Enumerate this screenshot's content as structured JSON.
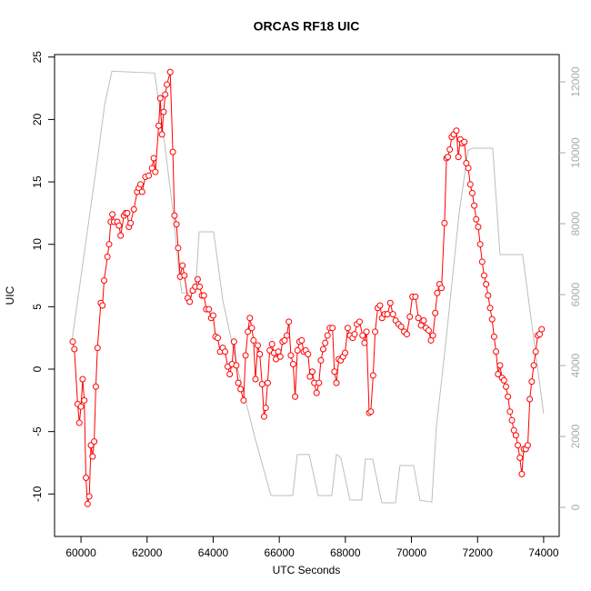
{
  "chart_data": {
    "type": "line",
    "title": "ORCAS RF18 UIC",
    "x_label": "UTC Seconds",
    "y_label": "UIC",
    "xlim": [
      59200,
      74470
    ],
    "xticks": [
      60000,
      62000,
      64000,
      66000,
      68000,
      70000,
      72000,
      74000
    ],
    "ylim": [
      -13.4,
      25.2
    ],
    "yticks": [
      -10,
      -5,
      0,
      5,
      10,
      15,
      20,
      25
    ],
    "y2lim": [
      -820,
      12770
    ],
    "y2ticks": [
      0,
      2000,
      4000,
      6000,
      8000,
      10000,
      12000
    ],
    "series": [
      {
        "color": "#bebebe",
        "axis": "y2",
        "marker": "none",
        "x": [
          59725,
          60495,
          60715,
          60935,
          62228,
          62503,
          62778,
          62970,
          63053,
          63465,
          63575,
          64015,
          64290,
          64703,
          65253,
          65748,
          66408,
          66545,
          66903,
          67178,
          67590,
          67728,
          67865,
          68140,
          68498,
          68608,
          68828,
          69103,
          69515,
          69653,
          70065,
          70258,
          70615,
          70753,
          71028,
          71440,
          71715,
          71853,
          72458,
          72678,
          73365,
          74000
        ],
        "values": [
          4690,
          9800,
          11360,
          12300,
          12250,
          10460,
          8400,
          6600,
          6050,
          6050,
          7770,
          7770,
          5850,
          4050,
          2000,
          333,
          333,
          1490,
          1490,
          333,
          333,
          1490,
          1400,
          205,
          205,
          1360,
          1360,
          128,
          128,
          1180,
          1180,
          200,
          150,
          2256,
          4560,
          8280,
          10080,
          10130,
          10130,
          7130,
          7130,
          2640
        ]
      },
      {
        "color": "#ff0000",
        "marker": "circle",
        "x": [
          59750,
          59800,
          59900,
          59950,
          60000,
          60050,
          60100,
          60150,
          60200,
          60250,
          60300,
          60350,
          60400,
          60450,
          60500,
          60600,
          60650,
          60700,
          60800,
          60850,
          60900,
          60950,
          61000,
          61100,
          61150,
          61200,
          61300,
          61350,
          61400,
          61450,
          61500,
          61600,
          61700,
          61750,
          61800,
          61850,
          61950,
          62050,
          62150,
          62200,
          62250,
          62350,
          62400,
          62450,
          62500,
          62550,
          62600,
          62700,
          62780,
          62830,
          62890,
          62940,
          63000,
          63070,
          63130,
          63230,
          63290,
          63380,
          63460,
          63530,
          63590,
          63660,
          63720,
          63790,
          63870,
          63940,
          64000,
          64070,
          64140,
          64210,
          64290,
          64360,
          64440,
          64500,
          64570,
          64630,
          64700,
          64760,
          64830,
          64920,
          64980,
          65050,
          65110,
          65170,
          65220,
          65280,
          65350,
          65410,
          65480,
          65540,
          65590,
          65650,
          65710,
          65780,
          65840,
          65900,
          65970,
          66030,
          66100,
          66160,
          66230,
          66290,
          66350,
          66420,
          66480,
          66550,
          66610,
          66680,
          66740,
          66800,
          66870,
          66930,
          67000,
          67060,
          67130,
          67200,
          67260,
          67330,
          67390,
          67460,
          67530,
          67610,
          67670,
          67730,
          67800,
          67860,
          67930,
          67990,
          68070,
          68140,
          68220,
          68280,
          68350,
          68430,
          68520,
          68580,
          68640,
          68720,
          68770,
          68840,
          68900,
          68980,
          69050,
          69110,
          69190,
          69270,
          69360,
          69440,
          69520,
          69610,
          69690,
          69780,
          69860,
          69950,
          70030,
          70120,
          70210,
          70290,
          70370,
          70440,
          70520,
          70590,
          70650,
          70720,
          70780,
          70850,
          70910,
          71000,
          71060,
          71100,
          71160,
          71220,
          71280,
          71360,
          71420,
          71480,
          71540,
          71600,
          71660,
          71720,
          71780,
          71840,
          71900,
          71960,
          72020,
          72080,
          72140,
          72200,
          72260,
          72320,
          72380,
          72440,
          72500,
          72560,
          72620,
          72680,
          72740,
          72800,
          72860,
          72920,
          72980,
          73040,
          73100,
          73160,
          73220,
          73280,
          73340,
          73400,
          73460,
          73520,
          73580,
          73640,
          73700,
          73760,
          73820,
          73880,
          73940
        ],
        "values": [
          2.2,
          1.6,
          -2.8,
          -4.3,
          -3.0,
          -0.8,
          -2.5,
          -8.7,
          -10.8,
          -10.2,
          -6.1,
          -7.0,
          -5.8,
          -1.4,
          1.7,
          5.3,
          5.1,
          7.1,
          9.0,
          10.0,
          11.8,
          12.4,
          11.8,
          11.8,
          11.5,
          10.7,
          12.3,
          12.5,
          12.5,
          11.4,
          11.7,
          12.8,
          14.2,
          14.5,
          14.8,
          14.2,
          15.4,
          15.5,
          16.1,
          16.9,
          15.8,
          19.5,
          21.7,
          18.8,
          20.6,
          22.0,
          22.8,
          23.8,
          17.4,
          12.3,
          11.6,
          9.7,
          7.4,
          8.3,
          7.5,
          5.7,
          5.4,
          6.3,
          6.6,
          7.2,
          6.6,
          5.9,
          5.9,
          4.8,
          4.8,
          4.1,
          4.3,
          2.6,
          2.5,
          1.4,
          1.7,
          1.4,
          0.2,
          -0.4,
          0.4,
          2.2,
          0.3,
          -1.1,
          -1.6,
          -2.5,
          1.1,
          3.0,
          4.1,
          3.3,
          2.3,
          -0.8,
          1.9,
          1.2,
          -1.2,
          -3.8,
          -3.1,
          -1.1,
          1.5,
          2.0,
          1.3,
          0.8,
          1.4,
          1.0,
          2.2,
          2.3,
          2.7,
          3.8,
          1.1,
          0.4,
          -2.2,
          1.5,
          2.2,
          2.3,
          1.4,
          1.5,
          1.2,
          -0.6,
          -0.2,
          -1.1,
          -1.9,
          -1.1,
          0.7,
          1.6,
          2.1,
          2.7,
          3.3,
          3.3,
          -0.2,
          -1.1,
          0.8,
          0.7,
          1.0,
          1.3,
          3.3,
          2.7,
          2.5,
          2.8,
          3.6,
          3.8,
          2.7,
          2.1,
          3.0,
          -3.5,
          -3.4,
          -0.5,
          3.0,
          4.9,
          5.1,
          4.1,
          4.4,
          4.4,
          5.3,
          4.4,
          3.9,
          3.6,
          3.4,
          3.0,
          2.8,
          4.2,
          5.8,
          5.8,
          4.1,
          3.5,
          3.9,
          3.3,
          3.1,
          2.3,
          2.7,
          4.5,
          6.1,
          6.8,
          6.5,
          11.7,
          16.9,
          17.0,
          17.6,
          18.6,
          18.8,
          19.1,
          17.0,
          18.4,
          18.1,
          18.2,
          16.5,
          16.1,
          14.8,
          14.1,
          13.1,
          12.0,
          11.4,
          10.0,
          8.6,
          7.5,
          6.8,
          5.9,
          4.9,
          4.0,
          2.6,
          1.4,
          -0.4,
          0.3,
          -0.7,
          -0.9,
          -1.4,
          -2.2,
          -3.4,
          -4.1,
          -4.9,
          -5.3,
          -6.1,
          -7.1,
          -8.4,
          -6.4,
          -6.4,
          -6.1,
          -2.4,
          -1.0,
          0.3,
          1.4,
          2.7,
          2.8,
          3.2
        ]
      }
    ]
  }
}
